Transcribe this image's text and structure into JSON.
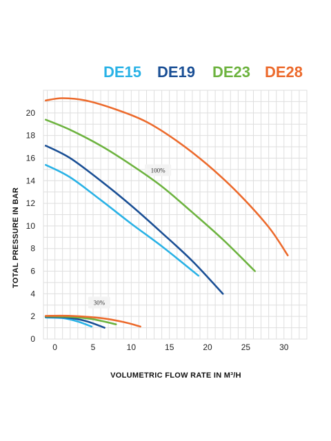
{
  "chart_data": {
    "type": "line",
    "xlabel": "VOLUMETRIC FLOW RATE IN M³/H",
    "ylabel": "TOTAL PRESSURE IN BAR",
    "xlim": [
      -1.5,
      33
    ],
    "ylim": [
      0,
      22
    ],
    "x_ticks": [
      0,
      5,
      10,
      15,
      20,
      25,
      30
    ],
    "y_ticks": [
      0,
      2,
      4,
      6,
      8,
      10,
      12,
      14,
      16,
      18,
      20
    ],
    "grid": true,
    "legend_position": "top",
    "series": [
      {
        "name": "DE15",
        "color": "#29b2e6",
        "group": "100%",
        "points": [
          [
            -1.2,
            15.4
          ],
          [
            2,
            14.3
          ],
          [
            6,
            12.3
          ],
          [
            10,
            10.2
          ],
          [
            14,
            8.2
          ],
          [
            18.8,
            5.6
          ]
        ]
      },
      {
        "name": "DE19",
        "color": "#1a4f95",
        "group": "100%",
        "points": [
          [
            -1.2,
            17.1
          ],
          [
            2,
            16.0
          ],
          [
            6,
            14.0
          ],
          [
            10,
            11.8
          ],
          [
            14,
            9.4
          ],
          [
            18,
            6.9
          ],
          [
            22,
            4.0
          ]
        ]
      },
      {
        "name": "DE23",
        "color": "#6db33f",
        "group": "100%",
        "points": [
          [
            -1.2,
            19.4
          ],
          [
            2,
            18.5
          ],
          [
            6,
            17.1
          ],
          [
            10,
            15.4
          ],
          [
            14,
            13.5
          ],
          [
            18,
            11.2
          ],
          [
            22,
            8.8
          ],
          [
            26.2,
            6.0
          ]
        ]
      },
      {
        "name": "DE28",
        "color": "#ec6a2c",
        "group": "100%",
        "points": [
          [
            -1.2,
            21.1
          ],
          [
            1,
            21.3
          ],
          [
            4,
            21.1
          ],
          [
            8,
            20.3
          ],
          [
            12,
            19.2
          ],
          [
            16,
            17.5
          ],
          [
            20,
            15.4
          ],
          [
            24,
            12.9
          ],
          [
            28,
            9.9
          ],
          [
            30.5,
            7.4
          ]
        ]
      },
      {
        "name": "DE15",
        "color": "#29b2e6",
        "group": "30%",
        "points": [
          [
            -1.2,
            1.9
          ],
          [
            1,
            1.85
          ],
          [
            3,
            1.55
          ],
          [
            4.8,
            1.1
          ]
        ]
      },
      {
        "name": "DE19",
        "color": "#1a4f95",
        "group": "30%",
        "points": [
          [
            -1.2,
            1.95
          ],
          [
            1.5,
            1.9
          ],
          [
            4,
            1.6
          ],
          [
            6.5,
            1.0
          ]
        ]
      },
      {
        "name": "DE23",
        "color": "#6db33f",
        "group": "30%",
        "points": [
          [
            -1.2,
            2.0
          ],
          [
            2,
            1.95
          ],
          [
            5,
            1.75
          ],
          [
            8,
            1.3
          ]
        ]
      },
      {
        "name": "DE28",
        "color": "#ec6a2c",
        "group": "30%",
        "points": [
          [
            -1.2,
            2.05
          ],
          [
            2,
            2.05
          ],
          [
            6,
            1.85
          ],
          [
            9,
            1.5
          ],
          [
            11.2,
            1.1
          ]
        ]
      }
    ],
    "annotations": [
      {
        "text": "100%",
        "x": 13.5,
        "y": 14.9
      },
      {
        "text": "30%",
        "x": 5.8,
        "y": 3.2
      }
    ]
  }
}
